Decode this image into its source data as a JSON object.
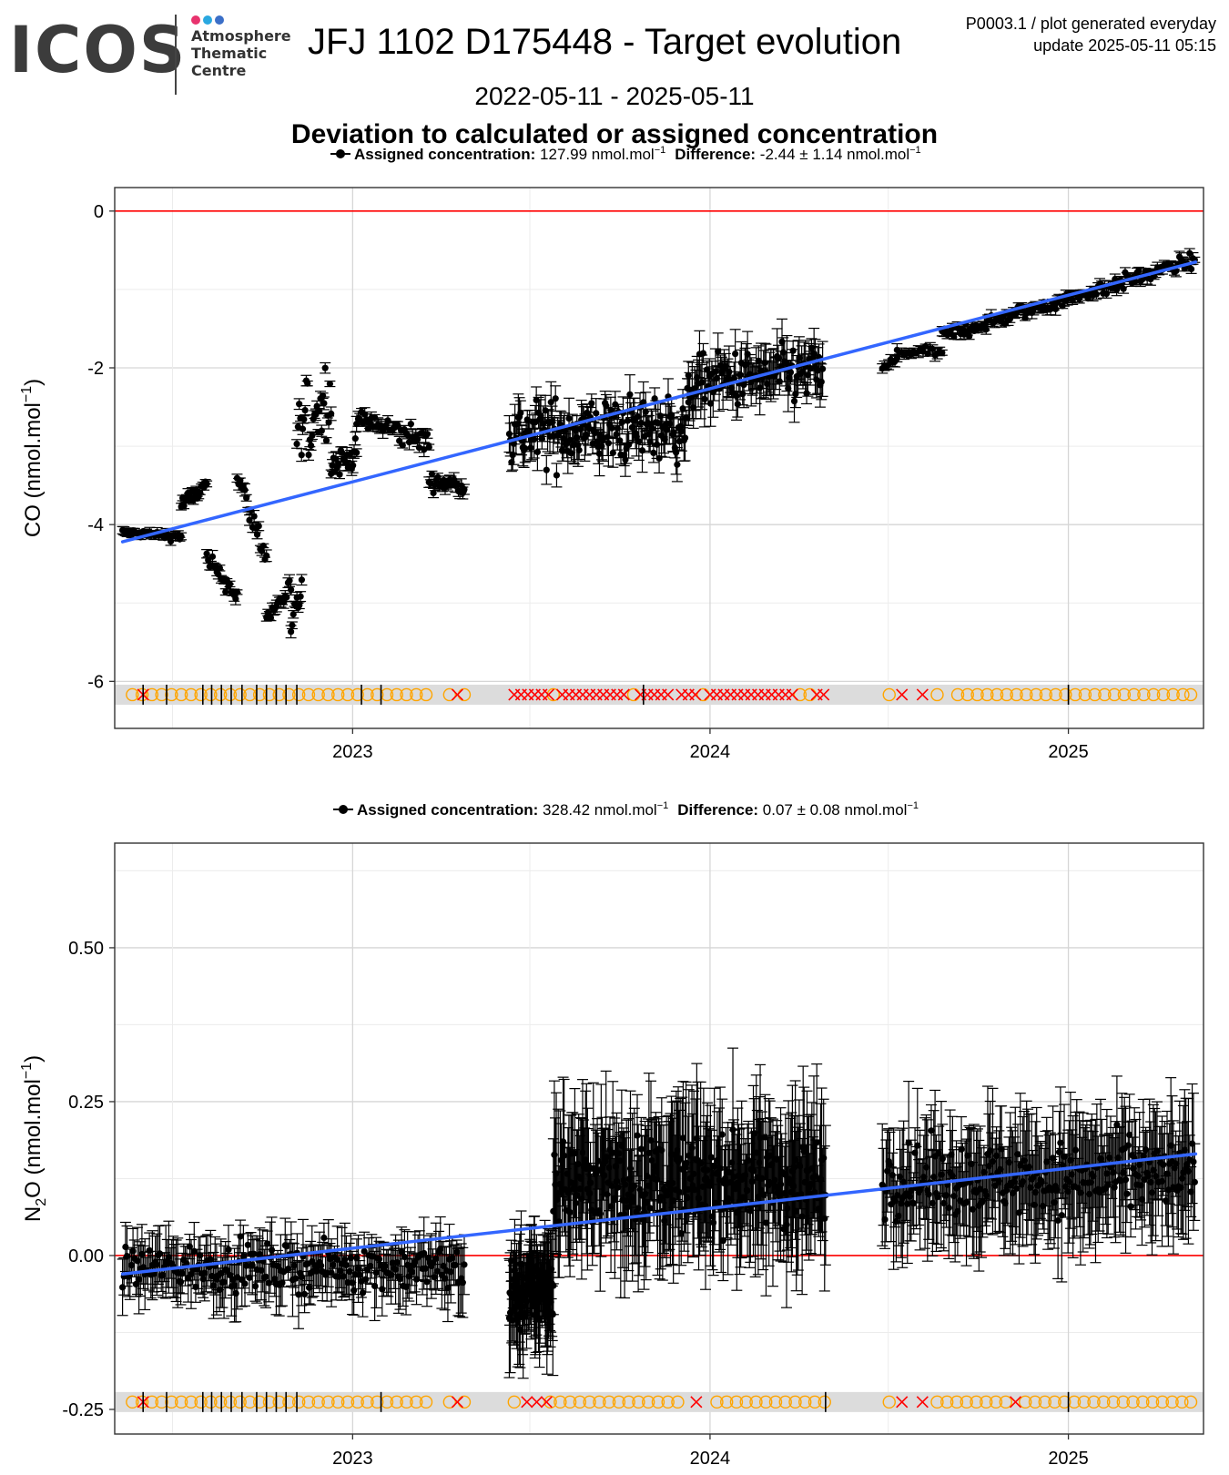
{
  "logo": {
    "word": "ICOS",
    "lines": [
      "Atmosphere",
      "Thematic",
      "Centre"
    ],
    "dot_colors": [
      "#e8336e",
      "#2aa8e0",
      "#3b6fc8"
    ]
  },
  "header": {
    "title": "JFJ 1102 D175448 - Target evolution",
    "meta_line1": "P0003.1 / plot generated everyday",
    "meta_line2": "update  2025-05-11 05:15",
    "date_range": "2022-05-11 - 2025-05-11",
    "subtitle": "Deviation to calculated or assigned concentration"
  },
  "chart_data": [
    {
      "type": "scatter",
      "ylabel": "CO (nmol.mol-1)",
      "ylim": [
        -6.6,
        0.3
      ],
      "xlim": [
        "2022-05-11",
        "2025-05-11"
      ],
      "x_ticks": [
        "2023",
        "2024",
        "2025"
      ],
      "y_ticks": [
        0,
        -2,
        -4,
        -6
      ],
      "legend": {
        "assigned_label": "Assigned concentration:",
        "assigned_value": "127.99 nmol.mol",
        "difference_label": "Difference:",
        "difference_value": "-2.44 ± 1.14 nmol.mol"
      },
      "reference_line": 0,
      "trend": {
        "start": [
          "2022-05-11",
          -4.22
        ],
        "end": [
          "2025-05-11",
          -0.65
        ]
      },
      "segments": [
        {
          "from": "2022-05-11",
          "to": "2022-07-10",
          "yStart": -4.1,
          "yEnd": -4.15,
          "noise": 0.04,
          "err": 0.03,
          "n": 40
        },
        {
          "from": "2022-07-10",
          "to": "2022-08-05",
          "yStart": -3.75,
          "yEnd": -3.5,
          "noise": 0.08,
          "err": 0.03,
          "n": 20
        },
        {
          "from": "2022-08-05",
          "to": "2022-09-05",
          "yStart": -4.45,
          "yEnd": -4.9,
          "noise": 0.08,
          "err": 0.04,
          "n": 22
        },
        {
          "from": "2022-09-05",
          "to": "2022-10-05",
          "yStart": -3.4,
          "yEnd": -4.4,
          "noise": 0.12,
          "err": 0.04,
          "n": 20
        },
        {
          "from": "2022-10-05",
          "to": "2022-10-30",
          "yStart": -5.2,
          "yEnd": -4.8,
          "noise": 0.1,
          "err": 0.04,
          "n": 18
        },
        {
          "from": "2022-10-30",
          "to": "2022-11-10",
          "yStart": -5.4,
          "yEnd": -4.8,
          "noise": 0.15,
          "err": 0.04,
          "n": 10
        },
        {
          "from": "2022-11-05",
          "to": "2022-12-10",
          "yStart": -2.9,
          "yEnd": -2.3,
          "noise": 0.35,
          "err": 0.05,
          "n": 30
        },
        {
          "from": "2022-12-10",
          "to": "2023-01-05",
          "yStart": -3.25,
          "yEnd": -3.1,
          "noise": 0.12,
          "err": 0.05,
          "n": 22
        },
        {
          "from": "2023-01-05",
          "to": "2023-03-20",
          "yStart": -2.65,
          "yEnd": -2.95,
          "noise": 0.12,
          "err": 0.05,
          "n": 45
        },
        {
          "from": "2023-03-20",
          "to": "2023-04-25",
          "yStart": -3.45,
          "yEnd": -3.5,
          "noise": 0.07,
          "err": 0.05,
          "n": 25
        },
        {
          "from": "2023-06-10",
          "to": "2023-12-10",
          "yStart": -2.85,
          "yEnd": -2.75,
          "noise": 0.3,
          "err": 0.15,
          "n": 160
        },
        {
          "from": "2023-12-10",
          "to": "2024-04-25",
          "yStart": -2.2,
          "yEnd": -2.05,
          "noise": 0.25,
          "err": 0.18,
          "n": 110
        },
        {
          "from": "2024-06-25",
          "to": "2024-07-10",
          "yStart": -2.0,
          "yEnd": -1.9,
          "noise": 0.04,
          "err": 0.04,
          "n": 8
        },
        {
          "from": "2024-07-10",
          "to": "2024-08-25",
          "yStart": -1.8,
          "yEnd": -1.8,
          "noise": 0.04,
          "err": 0.04,
          "n": 20
        },
        {
          "from": "2024-08-25",
          "to": "2025-05-10",
          "yStart": -1.6,
          "yEnd": -0.63,
          "noise": 0.07,
          "err": 0.04,
          "n": 150
        }
      ],
      "status_band_y": -6.17,
      "status": {
        "circles": [
          "2022-05-21",
          "2022-05-31",
          "2022-06-10",
          "2022-06-20",
          "2022-06-30",
          "2022-07-10",
          "2022-07-20",
          "2022-07-30",
          "2022-08-09",
          "2022-08-19",
          "2022-08-29",
          "2022-09-08",
          "2022-09-18",
          "2022-09-28",
          "2022-10-08",
          "2022-10-18",
          "2022-10-28",
          "2022-11-07",
          "2022-11-17",
          "2022-11-27",
          "2022-12-07",
          "2022-12-17",
          "2022-12-27",
          "2023-01-06",
          "2023-01-16",
          "2023-01-26",
          "2023-02-05",
          "2023-02-15",
          "2023-02-25",
          "2023-03-07",
          "2023-03-17",
          "2023-04-10",
          "2023-04-25",
          "2023-07-25",
          "2023-10-15",
          "2023-12-25",
          "2024-04-02",
          "2024-04-12",
          "2024-07-02",
          "2024-08-20",
          "2024-09-10",
          "2024-09-20",
          "2024-09-30",
          "2024-10-10",
          "2024-10-20",
          "2024-10-30",
          "2024-11-09",
          "2024-11-19",
          "2024-11-29",
          "2024-12-09",
          "2024-12-19",
          "2024-12-29",
          "2025-01-08",
          "2025-01-18",
          "2025-01-28",
          "2025-02-07",
          "2025-02-17",
          "2025-02-27",
          "2025-03-09",
          "2025-03-19",
          "2025-03-29",
          "2025-04-08",
          "2025-04-18",
          "2025-04-28",
          "2025-05-06"
        ],
        "crosses": [
          "2022-06-01",
          "2023-04-18",
          "2023-06-15",
          "2023-06-22",
          "2023-06-29",
          "2023-07-06",
          "2023-07-13",
          "2023-07-20",
          "2023-08-03",
          "2023-08-10",
          "2023-08-17",
          "2023-08-24",
          "2023-08-31",
          "2023-09-07",
          "2023-09-14",
          "2023-09-21",
          "2023-09-28",
          "2023-10-05",
          "2023-10-22",
          "2023-10-29",
          "2023-11-05",
          "2023-11-12",
          "2023-11-19",
          "2023-12-03",
          "2023-12-10",
          "2023-12-17",
          "2024-01-01",
          "2024-01-08",
          "2024-01-15",
          "2024-01-22",
          "2024-01-29",
          "2024-02-05",
          "2024-02-12",
          "2024-02-19",
          "2024-02-26",
          "2024-03-04",
          "2024-03-11",
          "2024-03-18",
          "2024-03-25",
          "2024-04-19",
          "2024-04-26",
          "2024-07-15",
          "2024-08-05"
        ],
        "ticks": [
          "2022-06-01",
          "2022-06-25",
          "2022-08-01",
          "2022-08-10",
          "2022-08-20",
          "2022-08-30",
          "2022-09-10",
          "2022-09-25",
          "2022-10-05",
          "2022-10-15",
          "2022-10-25",
          "2022-11-05",
          "2023-01-10",
          "2023-01-30",
          "2023-10-25",
          "2025-01-01"
        ]
      }
    },
    {
      "type": "scatter",
      "ylabel": "N2O (nmol.mol-1)",
      "ylim": [
        -0.29,
        0.67
      ],
      "xlim": [
        "2022-05-11",
        "2025-05-11"
      ],
      "x_ticks": [
        "2023",
        "2024",
        "2025"
      ],
      "y_ticks": [
        0.5,
        0.25,
        0,
        -0.25
      ],
      "legend": {
        "assigned_label": "Assigned concentration:",
        "assigned_value": "328.42 nmol.mol",
        "difference_label": "Difference:",
        "difference_value": "0.07 ± 0.08 nmol.mol"
      },
      "reference_line": 0,
      "trend": {
        "start": [
          "2022-05-11",
          -0.03
        ],
        "end": [
          "2025-05-11",
          0.165
        ]
      },
      "segments": [
        {
          "from": "2022-05-11",
          "to": "2023-04-25",
          "yStart": -0.02,
          "yEnd": -0.02,
          "noise": 0.025,
          "err": 0.03,
          "n": 230
        },
        {
          "from": "2023-06-10",
          "to": "2023-07-25",
          "yStart": -0.07,
          "yEnd": -0.05,
          "noise": 0.04,
          "err": 0.05,
          "n": 90
        },
        {
          "from": "2023-07-25",
          "to": "2024-04-28",
          "yStart": 0.12,
          "yEnd": 0.12,
          "noise": 0.05,
          "err": 0.07,
          "n": 280
        },
        {
          "from": "2024-06-25",
          "to": "2025-05-10",
          "yStart": 0.12,
          "yEnd": 0.13,
          "noise": 0.04,
          "err": 0.06,
          "n": 250
        }
      ],
      "status_band_y": -0.238,
      "status": {
        "circles": [
          "2022-05-21",
          "2022-05-31",
          "2022-06-10",
          "2022-06-20",
          "2022-06-30",
          "2022-07-10",
          "2022-07-20",
          "2022-07-30",
          "2022-08-09",
          "2022-08-19",
          "2022-08-29",
          "2022-09-08",
          "2022-09-18",
          "2022-09-28",
          "2022-10-08",
          "2022-10-18",
          "2022-10-28",
          "2022-11-07",
          "2022-11-17",
          "2022-11-27",
          "2022-12-07",
          "2022-12-17",
          "2022-12-27",
          "2023-01-06",
          "2023-01-16",
          "2023-01-26",
          "2023-02-05",
          "2023-02-15",
          "2023-02-25",
          "2023-03-07",
          "2023-03-17",
          "2023-04-10",
          "2023-04-25",
          "2023-06-15",
          "2023-07-22",
          "2023-08-01",
          "2023-08-11",
          "2023-08-21",
          "2023-08-31",
          "2023-09-10",
          "2023-09-20",
          "2023-09-30",
          "2023-10-10",
          "2023-10-20",
          "2023-10-30",
          "2023-11-09",
          "2023-11-19",
          "2023-11-29",
          "2024-01-08",
          "2024-01-18",
          "2024-01-28",
          "2024-02-07",
          "2024-02-17",
          "2024-02-27",
          "2024-03-08",
          "2024-03-18",
          "2024-03-28",
          "2024-04-07",
          "2024-04-17",
          "2024-04-27",
          "2024-07-02",
          "2024-08-20",
          "2024-08-30",
          "2024-09-09",
          "2024-09-19",
          "2024-09-29",
          "2024-10-09",
          "2024-10-19",
          "2024-10-29",
          "2024-11-18",
          "2024-11-28",
          "2024-12-08",
          "2024-12-18",
          "2024-12-28",
          "2025-01-07",
          "2025-01-17",
          "2025-01-27",
          "2025-02-06",
          "2025-02-16",
          "2025-02-26",
          "2025-03-08",
          "2025-03-18",
          "2025-03-28",
          "2025-04-07",
          "2025-04-17",
          "2025-04-27",
          "2025-05-06"
        ],
        "crosses": [
          "2022-06-01",
          "2023-04-18",
          "2023-06-28",
          "2023-07-08",
          "2023-07-18",
          "2023-12-18",
          "2024-07-15",
          "2024-08-05",
          "2024-11-08"
        ],
        "ticks": [
          "2022-06-01",
          "2022-06-25",
          "2022-08-01",
          "2022-08-10",
          "2022-08-20",
          "2022-08-30",
          "2022-09-10",
          "2022-09-25",
          "2022-10-05",
          "2022-10-15",
          "2022-10-25",
          "2022-11-05",
          "2023-01-30",
          "2024-04-28",
          "2025-01-01"
        ]
      }
    }
  ],
  "colors": {
    "points": "#000000",
    "trend": "#3366ff",
    "reference": "#ff0000",
    "status_circle": "#ffa500",
    "status_cross": "#ff0000",
    "band": "#dcdcdc",
    "grid_major": "#d6d6d6",
    "grid_minor": "#ececec"
  }
}
